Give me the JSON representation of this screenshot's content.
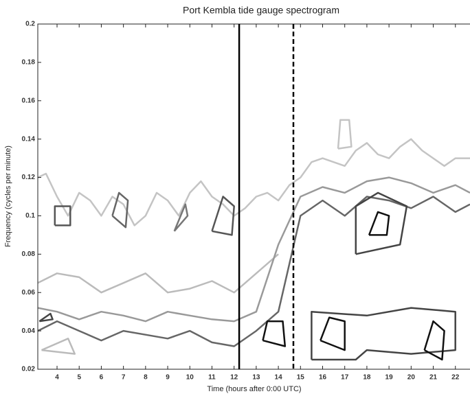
{
  "chart_data": {
    "type": "contour",
    "title": "Port Kembla tide gauge spectrogram",
    "x_label": "Time (hours after 0:00 UTC)",
    "y_label": "Frequency (cycles per minute)",
    "xlim": [
      3.13,
      22.66
    ],
    "ylim": [
      0.02,
      0.2
    ],
    "xticks": [
      4,
      5,
      6,
      7,
      8,
      9,
      10,
      11,
      12,
      13,
      14,
      15,
      16,
      17,
      18,
      19,
      20,
      21,
      22
    ],
    "yticks": [
      0.02,
      0.04,
      0.06,
      0.08,
      0.1,
      0.12,
      0.14,
      0.16,
      0.18,
      0.2
    ],
    "markers": [
      {
        "x": 12.23,
        "style": "solid"
      },
      {
        "x": 14.68,
        "style": "dashed"
      }
    ],
    "contours": [
      {
        "color": "#c4c4c4",
        "x": [
          3.13,
          3.5,
          4,
          4.5,
          5,
          5.5,
          6,
          6.5,
          7,
          7.5,
          8,
          8.5,
          9,
          9.5,
          10,
          10.5,
          11,
          11.5,
          12,
          12.5,
          13,
          13.5,
          14,
          14.5,
          15,
          15.5,
          16,
          16.5,
          17,
          17.5,
          18,
          18.5,
          19,
          19.5,
          20,
          20.5,
          21,
          21.5,
          22,
          22.66
        ],
        "y": [
          0.12,
          0.122,
          0.11,
          0.1,
          0.112,
          0.108,
          0.1,
          0.11,
          0.106,
          0.095,
          0.1,
          0.112,
          0.108,
          0.1,
          0.112,
          0.118,
          0.11,
          0.106,
          0.1,
          0.104,
          0.11,
          0.112,
          0.108,
          0.116,
          0.12,
          0.128,
          0.13,
          0.128,
          0.126,
          0.134,
          0.138,
          0.132,
          0.13,
          0.136,
          0.14,
          0.134,
          0.13,
          0.126,
          0.13,
          0.13
        ]
      },
      {
        "color": "#bbbbbb",
        "x": [
          3.13,
          4,
          5,
          6,
          7,
          8,
          9,
          10,
          11,
          12,
          12.5,
          13,
          13.5,
          14
        ],
        "y": [
          0.065,
          0.07,
          0.068,
          0.06,
          0.065,
          0.07,
          0.06,
          0.062,
          0.066,
          0.06,
          0.065,
          0.07,
          0.075,
          0.08
        ]
      },
      {
        "color": "#999999",
        "x": [
          3.13,
          4,
          5,
          6,
          7,
          8,
          9,
          10,
          11,
          12,
          13,
          14,
          15,
          16,
          17,
          18,
          19,
          20,
          21,
          22,
          22.66
        ],
        "y": [
          0.052,
          0.05,
          0.046,
          0.05,
          0.048,
          0.045,
          0.05,
          0.048,
          0.046,
          0.045,
          0.05,
          0.085,
          0.11,
          0.115,
          0.112,
          0.118,
          0.12,
          0.117,
          0.112,
          0.116,
          0.112
        ]
      },
      {
        "color": "#666666",
        "x": [
          3.13,
          4,
          5,
          6,
          7,
          8,
          9,
          10,
          11,
          12,
          13,
          14,
          15,
          16,
          17,
          18,
          19,
          20,
          21,
          22,
          22.66
        ],
        "y": [
          0.04,
          0.045,
          0.04,
          0.035,
          0.04,
          0.038,
          0.036,
          0.04,
          0.034,
          0.032,
          0.04,
          0.05,
          0.1,
          0.108,
          0.1,
          0.11,
          0.108,
          0.104,
          0.11,
          0.102,
          0.106
        ]
      },
      {
        "color": "#555555",
        "x": [
          3.9,
          4.6,
          4.6,
          3.9,
          3.9
        ],
        "y": [
          0.095,
          0.095,
          0.105,
          0.105,
          0.095
        ]
      },
      {
        "color": "#666666",
        "x": [
          6.5,
          7.1,
          7.2,
          6.8,
          6.5
        ],
        "y": [
          0.1,
          0.094,
          0.108,
          0.112,
          0.1
        ]
      },
      {
        "color": "#777777",
        "x": [
          9.3,
          9.9,
          9.8,
          9.3
        ],
        "y": [
          0.092,
          0.1,
          0.106,
          0.092
        ]
      },
      {
        "color": "#555555",
        "x": [
          11,
          11.9,
          12,
          11.5,
          11
        ],
        "y": [
          0.092,
          0.09,
          0.105,
          0.11,
          0.092
        ]
      },
      {
        "color": "#444444",
        "x": [
          17.5,
          19.5,
          19.8,
          18.5,
          17.5,
          17.5
        ],
        "y": [
          0.08,
          0.085,
          0.105,
          0.112,
          0.105,
          0.08
        ]
      },
      {
        "color": "#111111",
        "x": [
          18.1,
          18.9,
          19,
          18.5,
          18.1
        ],
        "y": [
          0.09,
          0.09,
          0.1,
          0.102,
          0.09
        ]
      },
      {
        "color": "#444444",
        "x": [
          15.5,
          17.5,
          18,
          20,
          22,
          22,
          20,
          18,
          15.5,
          15.5
        ],
        "y": [
          0.025,
          0.025,
          0.03,
          0.028,
          0.03,
          0.05,
          0.052,
          0.048,
          0.05,
          0.025
        ]
      },
      {
        "color": "#111111",
        "x": [
          15.9,
          17,
          17,
          16.3,
          15.9
        ],
        "y": [
          0.035,
          0.03,
          0.045,
          0.047,
          0.035
        ]
      },
      {
        "color": "#111111",
        "x": [
          20.6,
          21.4,
          21.5,
          21,
          20.6
        ],
        "y": [
          0.03,
          0.025,
          0.04,
          0.045,
          0.03
        ]
      },
      {
        "color": "#111111",
        "x": [
          13.3,
          14.3,
          14.2,
          13.5,
          13.3
        ],
        "y": [
          0.035,
          0.032,
          0.045,
          0.045,
          0.035
        ]
      },
      {
        "color": "#c4c4c4",
        "x": [
          16.7,
          17.3,
          17.2,
          16.8,
          16.7
        ],
        "y": [
          0.135,
          0.136,
          0.15,
          0.15,
          0.135
        ]
      },
      {
        "color": "#bbbbbb",
        "x": [
          3.3,
          4.8,
          4.5,
          3.3
        ],
        "y": [
          0.03,
          0.028,
          0.036,
          0.03
        ]
      },
      {
        "color": "#444444",
        "x": [
          3.2,
          3.8,
          3.7,
          3.2
        ],
        "y": [
          0.045,
          0.046,
          0.049,
          0.045
        ]
      }
    ]
  }
}
